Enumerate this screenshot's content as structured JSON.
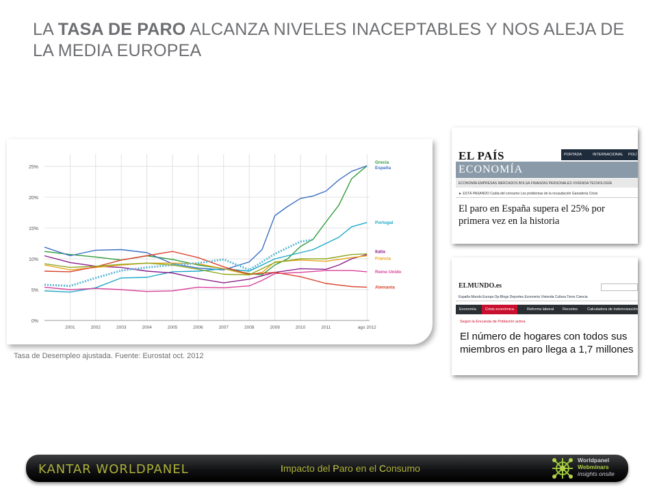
{
  "slide": {
    "title_part1": "LA ",
    "title_bold": "TASA DE PARO",
    "title_part2": " ALCANZA NIVELES INACEPTABLES Y NOS ALEJA DE LA MEDIA EUROPEA",
    "source": "Tasa de Desempleo ajustada. Fuente: Eurostat oct. 2012"
  },
  "news1": {
    "logo": "EL PAÍS",
    "topbar": [
      "PORTADA",
      "INTERNACIONAL",
      "POLÍ"
    ],
    "section": "ECONOMÍA",
    "menu": "ECONOMÍA  EMPRESAS  MERCADOS  BOLSA  FINANZAS PERSONALES  VIVIENDA  TECNOLOGÍA",
    "sub": "► ESTÁ PASANDO    Caída del consumo    Los problemas de la recaudación    Ganadería    Crisis",
    "headline": "El paro en España supera el 25% por primera vez en la historia"
  },
  "news2": {
    "logo": "ELMUNDO.es",
    "menu": "España   Mundo   Europa   Op-Blogs   Deportes   Economía   Vivienda   Cultura   Toros   Ciencia",
    "nav": [
      "Economía",
      "Crisis económica",
      "Reforma laboral",
      "Recortes",
      "Calculadora de indemnización"
    ],
    "kicker": "Según la Encuesta de Población activa",
    "headline": "El número de hogares con todos sus miembros en paro llega a 1,7 millones"
  },
  "footer": {
    "brand": "KANTAR WORLDPANEL",
    "center_html_parts": [
      "I",
      "mpacto del ",
      "P",
      "aro en el ",
      "C",
      "onsumo"
    ],
    "wp_line1": "Worldpanel",
    "wp_line2": "Webminars",
    "wp_line3": "insights onsite"
  },
  "colors": {
    "grecia": "#2e9a38",
    "espana": "#3a6fc1",
    "portugal": "#1aa7c9",
    "italia": "#8a1d8a",
    "francia": "#e8a21a",
    "reino_unido": "#d9409a",
    "alemania": "#d9412b",
    "ue": "#5bb8d6",
    "other": "#8fa61f",
    "footer_green": "#aeb13a"
  },
  "chart_data": {
    "type": "line",
    "x_ticks": [
      "2001",
      "2002",
      "2003",
      "2004",
      "2005",
      "2006",
      "2007",
      "2008",
      "2009",
      "2010",
      "2011",
      "ago 2012"
    ],
    "y_ticks": [
      "0%",
      "5%",
      "10%",
      "15%",
      "20%",
      "25%"
    ],
    "ylim": [
      0,
      27
    ],
    "xlim": [
      2000.0,
      2012.7
    ],
    "grid": true,
    "legend": "right",
    "series": [
      {
        "name": "Grecia",
        "color": "#2e9a38",
        "x": [
          2000,
          2001,
          2002,
          2003,
          2004,
          2005,
          2006,
          2007,
          2008,
          2008.5,
          2009,
          2009.5,
          2010,
          2010.5,
          2011,
          2011.5,
          2012,
          2012.6
        ],
        "y": [
          11.2,
          10.7,
          10.3,
          9.8,
          10.5,
          9.9,
          9.0,
          8.4,
          7.6,
          7.4,
          9.0,
          10.0,
          12.0,
          13.2,
          16.0,
          18.7,
          23.0,
          25.1
        ]
      },
      {
        "name": "España",
        "color": "#3a6fc1",
        "x": [
          2000,
          2001,
          2002,
          2003,
          2004,
          2005,
          2006,
          2007,
          2008,
          2008.5,
          2009,
          2009.5,
          2010,
          2010.5,
          2011,
          2011.5,
          2012,
          2012.6
        ],
        "y": [
          11.9,
          10.5,
          11.4,
          11.5,
          11.0,
          9.2,
          8.5,
          8.2,
          9.5,
          11.5,
          17.0,
          18.5,
          19.8,
          20.2,
          21.0,
          22.8,
          24.2,
          25.1
        ]
      },
      {
        "name": "Portugal",
        "color": "#1aa7c9",
        "x": [
          2000,
          2001,
          2002,
          2003,
          2004,
          2005,
          2006,
          2007,
          2008,
          2009,
          2009.5,
          2010,
          2010.5,
          2011,
          2011.5,
          2012,
          2012.6
        ],
        "y": [
          4.8,
          4.6,
          5.3,
          6.9,
          7.0,
          7.9,
          8.0,
          8.4,
          8.0,
          10.0,
          10.5,
          11.0,
          11.5,
          12.5,
          13.5,
          15.2,
          15.9
        ]
      },
      {
        "name": "Italia",
        "color": "#8a1d8a",
        "x": [
          2000,
          2001,
          2002,
          2003,
          2004,
          2005,
          2006,
          2007,
          2008,
          2009,
          2010,
          2011,
          2011.5,
          2012,
          2012.6
        ],
        "y": [
          10.5,
          9.4,
          8.8,
          8.6,
          8.0,
          7.7,
          6.8,
          6.1,
          6.7,
          7.8,
          8.4,
          8.3,
          9.0,
          10.0,
          10.7
        ]
      },
      {
        "name": "Francia",
        "color": "#e8a21a",
        "x": [
          2000,
          2001,
          2002,
          2003,
          2004,
          2005,
          2006,
          2007,
          2008,
          2008.5,
          2009,
          2010,
          2011,
          2012,
          2012.6
        ],
        "y": [
          9.0,
          8.2,
          8.6,
          9.0,
          9.3,
          9.3,
          9.2,
          8.4,
          7.4,
          7.8,
          9.5,
          9.8,
          9.6,
          10.2,
          10.5
        ]
      },
      {
        "name": "Reino Unido",
        "color": "#d9409a",
        "x": [
          2000,
          2001,
          2002,
          2003,
          2004,
          2005,
          2006,
          2007,
          2008,
          2008.5,
          2009,
          2010,
          2011,
          2012,
          2012.6
        ],
        "y": [
          5.4,
          5.0,
          5.2,
          5.0,
          4.7,
          4.8,
          5.4,
          5.3,
          5.6,
          6.5,
          7.6,
          7.8,
          8.1,
          8.1,
          7.9
        ]
      },
      {
        "name": "Alemania",
        "color": "#d9412b",
        "x": [
          2000,
          2001,
          2002,
          2003,
          2004,
          2005,
          2006,
          2007,
          2008,
          2009,
          2010,
          2011,
          2012,
          2012.6
        ],
        "y": [
          8.0,
          7.9,
          8.7,
          9.8,
          10.5,
          11.2,
          10.2,
          8.7,
          7.5,
          7.8,
          7.1,
          6.0,
          5.5,
          5.4
        ]
      },
      {
        "name": "",
        "color": "#5bb8d6",
        "dashed": true,
        "x": [
          2000,
          2001,
          2002,
          2003,
          2004,
          2005,
          2006,
          2007,
          2008,
          2009,
          2010,
          2010.5
        ],
        "y": [
          5.8,
          5.6,
          6.9,
          8.1,
          8.6,
          9.0,
          9.3,
          9.9,
          8.2,
          10.8,
          12.8,
          13.1
        ]
      },
      {
        "name": "",
        "color": "#8fa61f",
        "x": [
          2000,
          2001,
          2002,
          2003,
          2004,
          2005,
          2006,
          2007,
          2008,
          2009,
          2010,
          2011,
          2012,
          2012.6
        ],
        "y": [
          9.2,
          8.6,
          8.8,
          9.1,
          9.3,
          9.0,
          8.3,
          7.5,
          7.4,
          9.4,
          10.0,
          10.0,
          10.7,
          10.8
        ]
      }
    ]
  }
}
